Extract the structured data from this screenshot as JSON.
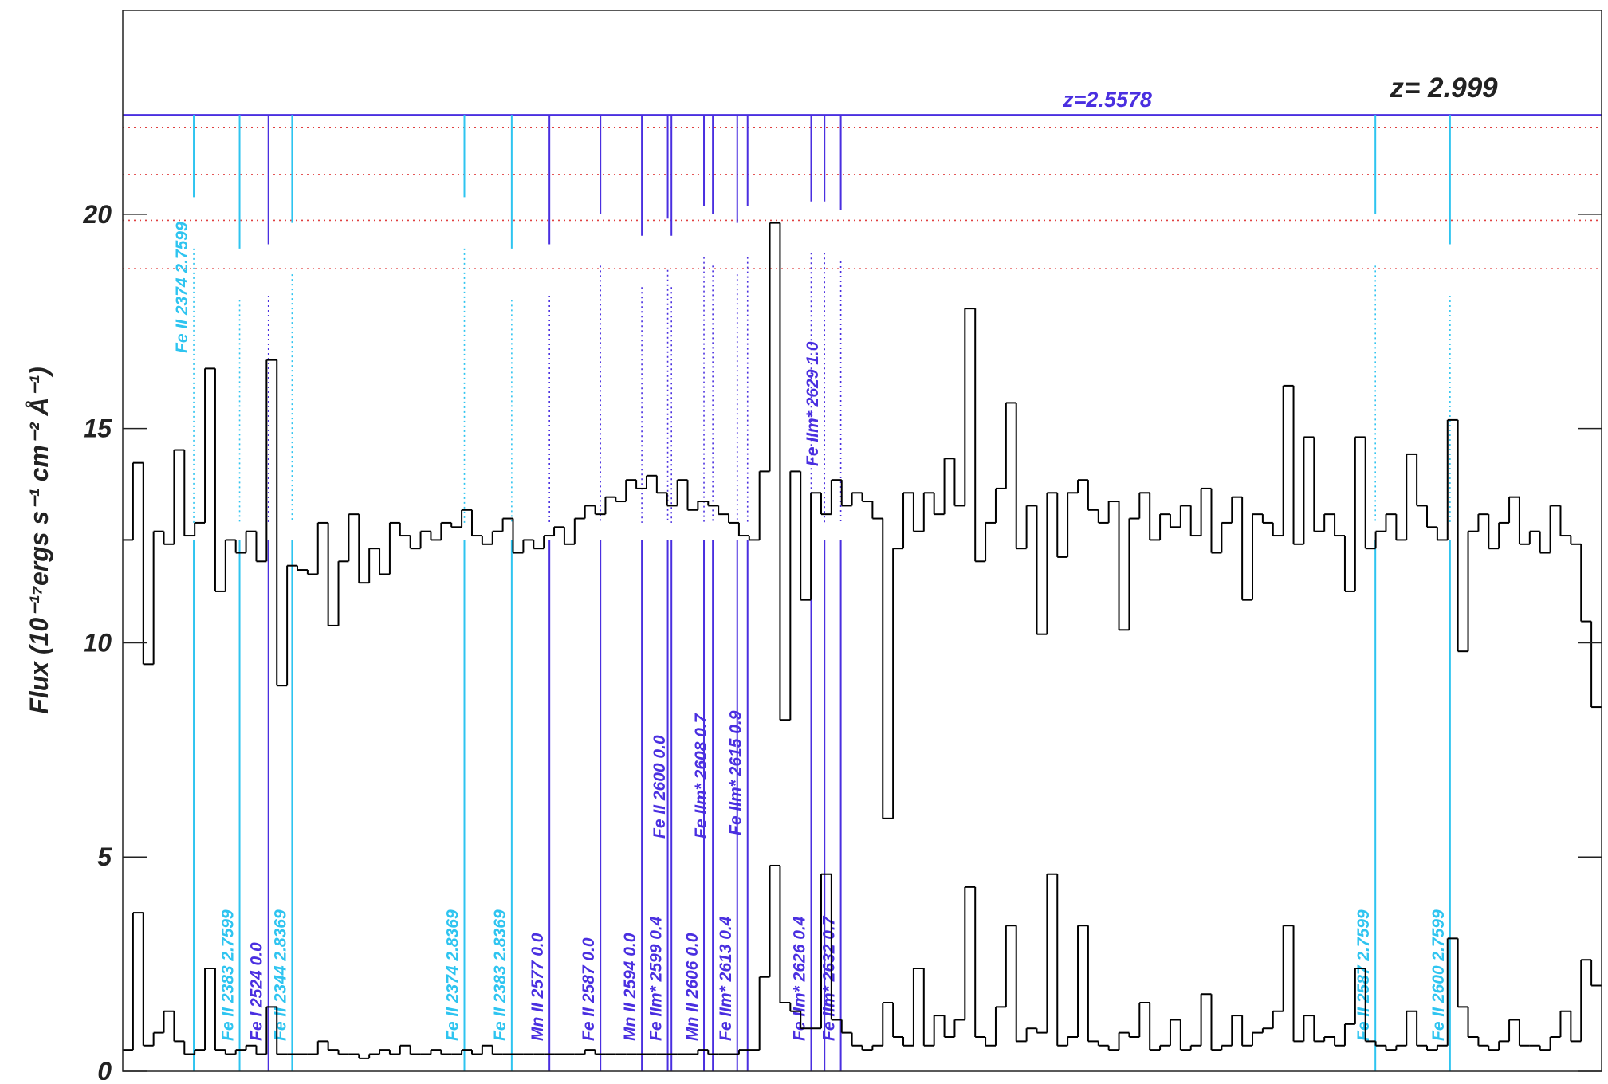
{
  "chart_data": {
    "type": "line",
    "ylabel": "Flux (10⁻¹⁷ergs s⁻¹ cm⁻² Å⁻¹)",
    "ylim": [
      0,
      24.76
    ],
    "yticks": [
      0,
      5,
      10,
      15,
      20
    ],
    "series": [
      {
        "name": "flux",
        "color": "#000000",
        "values": [
          12.4,
          14.2,
          9.5,
          12.6,
          12.3,
          14.5,
          12.5,
          12.8,
          16.4,
          11.2,
          12.4,
          12.1,
          12.6,
          11.9,
          16.6,
          9.0,
          11.8,
          11.7,
          11.6,
          12.8,
          10.4,
          11.9,
          13.0,
          11.4,
          12.2,
          11.6,
          12.8,
          12.5,
          12.2,
          12.6,
          12.4,
          12.8,
          12.7,
          13.1,
          12.5,
          12.3,
          12.6,
          12.9,
          12.1,
          12.4,
          12.2,
          12.5,
          12.7,
          12.3,
          12.9,
          13.2,
          13.0,
          13.4,
          13.3,
          13.8,
          13.6,
          13.9,
          13.5,
          13.2,
          13.8,
          13.1,
          13.3,
          13.2,
          13.0,
          12.8,
          12.5,
          12.4,
          14.0,
          19.8,
          8.2,
          14.0,
          11.0,
          13.5,
          13.0,
          13.8,
          13.2,
          13.5,
          13.3,
          12.9,
          5.9,
          12.2,
          13.5,
          12.6,
          13.5,
          13.0,
          14.3,
          13.2,
          17.8,
          11.9,
          12.8,
          13.6,
          15.6,
          12.2,
          13.2,
          10.2,
          13.5,
          12.0,
          13.5,
          13.8,
          13.1,
          12.8,
          13.3,
          10.3,
          12.9,
          13.5,
          12.4,
          13.0,
          12.7,
          13.2,
          12.5,
          13.6,
          12.1,
          12.8,
          13.4,
          11.0,
          13.0,
          12.8,
          12.5,
          16.0,
          12.3,
          14.8,
          12.6,
          13.0,
          12.5,
          11.2,
          14.8,
          12.2,
          12.6,
          13.0,
          12.4,
          14.4,
          13.2,
          12.7,
          12.4,
          15.2,
          9.8,
          12.6,
          13.0,
          12.2,
          12.8,
          13.4,
          12.3,
          12.6,
          12.1,
          13.2,
          12.5,
          12.3,
          10.5,
          8.5
        ]
      },
      {
        "name": "error",
        "color": "#000000",
        "values": [
          0.5,
          3.7,
          0.6,
          0.9,
          1.4,
          0.7,
          0.4,
          0.5,
          2.4,
          0.5,
          0.4,
          0.5,
          0.6,
          0.4,
          1.5,
          0.4,
          0.4,
          0.4,
          0.4,
          0.7,
          0.5,
          0.4,
          0.4,
          0.3,
          0.4,
          0.5,
          0.4,
          0.6,
          0.4,
          0.4,
          0.5,
          0.4,
          0.4,
          0.5,
          0.4,
          0.6,
          0.4,
          0.4,
          0.4,
          0.4,
          0.4,
          0.4,
          0.4,
          0.4,
          0.4,
          0.5,
          0.4,
          0.4,
          0.4,
          0.4,
          0.4,
          0.4,
          0.4,
          0.4,
          0.4,
          0.4,
          0.5,
          0.4,
          0.4,
          0.4,
          0.5,
          0.5,
          2.2,
          4.8,
          1.6,
          1.4,
          1.0,
          1.0,
          4.6,
          1.2,
          0.9,
          0.6,
          0.5,
          0.6,
          1.6,
          0.8,
          0.6,
          2.4,
          0.6,
          1.3,
          0.8,
          1.2,
          4.3,
          0.8,
          0.6,
          1.5,
          3.4,
          0.7,
          1.0,
          0.9,
          4.6,
          0.6,
          0.8,
          3.4,
          0.7,
          0.6,
          0.5,
          0.9,
          0.8,
          1.6,
          0.5,
          0.6,
          1.2,
          0.5,
          0.6,
          1.8,
          0.5,
          0.6,
          1.3,
          0.6,
          0.9,
          1.0,
          1.4,
          3.4,
          0.7,
          1.3,
          0.7,
          0.8,
          0.6,
          1.1,
          2.4,
          0.7,
          0.6,
          0.5,
          0.6,
          1.4,
          0.6,
          0.5,
          0.6,
          3.1,
          1.5,
          0.8,
          0.6,
          0.5,
          0.7,
          1.2,
          0.6,
          0.6,
          0.5,
          0.8,
          1.4,
          0.7,
          2.6,
          2.0
        ]
      }
    ],
    "hlines": [
      {
        "value": 22.32,
        "color": "#4a2fe0",
        "style": "solid"
      },
      {
        "value": 22.03,
        "color": "#e04040",
        "style": "dotted"
      },
      {
        "value": 20.93,
        "color": "#e04040",
        "style": "dotted"
      },
      {
        "value": 19.86,
        "color": "#e04040",
        "style": "dotted"
      },
      {
        "value": 18.73,
        "color": "#e04040",
        "style": "dotted"
      }
    ],
    "markers": [
      {
        "label": "Fe II 2374 2.7599",
        "x": 4.8,
        "color": "#2ec4f0"
      },
      {
        "label": "Fe II 2383 2.7599",
        "x": 7.9,
        "color": "#2ec4f0"
      },
      {
        "label": "Fe I 2524 0.0",
        "x": 9.85,
        "color": "#4a2fe0"
      },
      {
        "label": "Fe II 2344 2.8369",
        "x": 11.45,
        "color": "#2ec4f0"
      },
      {
        "label": "Fe II 2374 2.8369",
        "x": 23.1,
        "color": "#2ec4f0"
      },
      {
        "label": "Fe II 2383 2.8369",
        "x": 26.3,
        "color": "#2ec4f0"
      },
      {
        "label": "Mn II 2577 0.0",
        "x": 28.85,
        "color": "#4a2fe0"
      },
      {
        "label": "Fe II 2587 0.0",
        "x": 32.3,
        "color": "#4a2fe0"
      },
      {
        "label": "Mn II 2594 0.0",
        "x": 35.1,
        "color": "#4a2fe0"
      },
      {
        "label": "Fe IIm* 2599 0.4",
        "x": 36.85,
        "color": "#4a2fe0"
      },
      {
        "label": "Fe II 2600 0.0",
        "x": 37.1,
        "color": "#4a2fe0"
      },
      {
        "label": "Mn II 2606 0.0",
        "x": 39.3,
        "color": "#4a2fe0"
      },
      {
        "label": "Fe IIm* 2608 0.7",
        "x": 39.9,
        "color": "#4a2fe0"
      },
      {
        "label": "Fe IIm* 2613 0.4",
        "x": 41.55,
        "color": "#4a2fe0"
      },
      {
        "label": "Fe IIm* 2615 0.9",
        "x": 42.25,
        "color": "#4a2fe0"
      },
      {
        "label": "Fe IIm* 2626 0.4",
        "x": 46.55,
        "color": "#4a2fe0"
      },
      {
        "label": "Fe IIm* 2629 1.0",
        "x": 47.45,
        "color": "#4a2fe0"
      },
      {
        "label": "Fe IIm* 2632 0.7",
        "x": 48.55,
        "color": "#4a2fe0"
      },
      {
        "label": "Fe II 2587 2.7599",
        "x": 84.7,
        "color": "#2ec4f0"
      },
      {
        "label": "Fe II 2600 2.7599",
        "x": 89.75,
        "color": "#2ec4f0"
      }
    ],
    "xlim": [
      0,
      100
    ],
    "annotations": [
      {
        "text": "z=2.5578",
        "color": "#4a2fe0"
      },
      {
        "text": "z= 2.999",
        "color": "#222222"
      }
    ]
  }
}
